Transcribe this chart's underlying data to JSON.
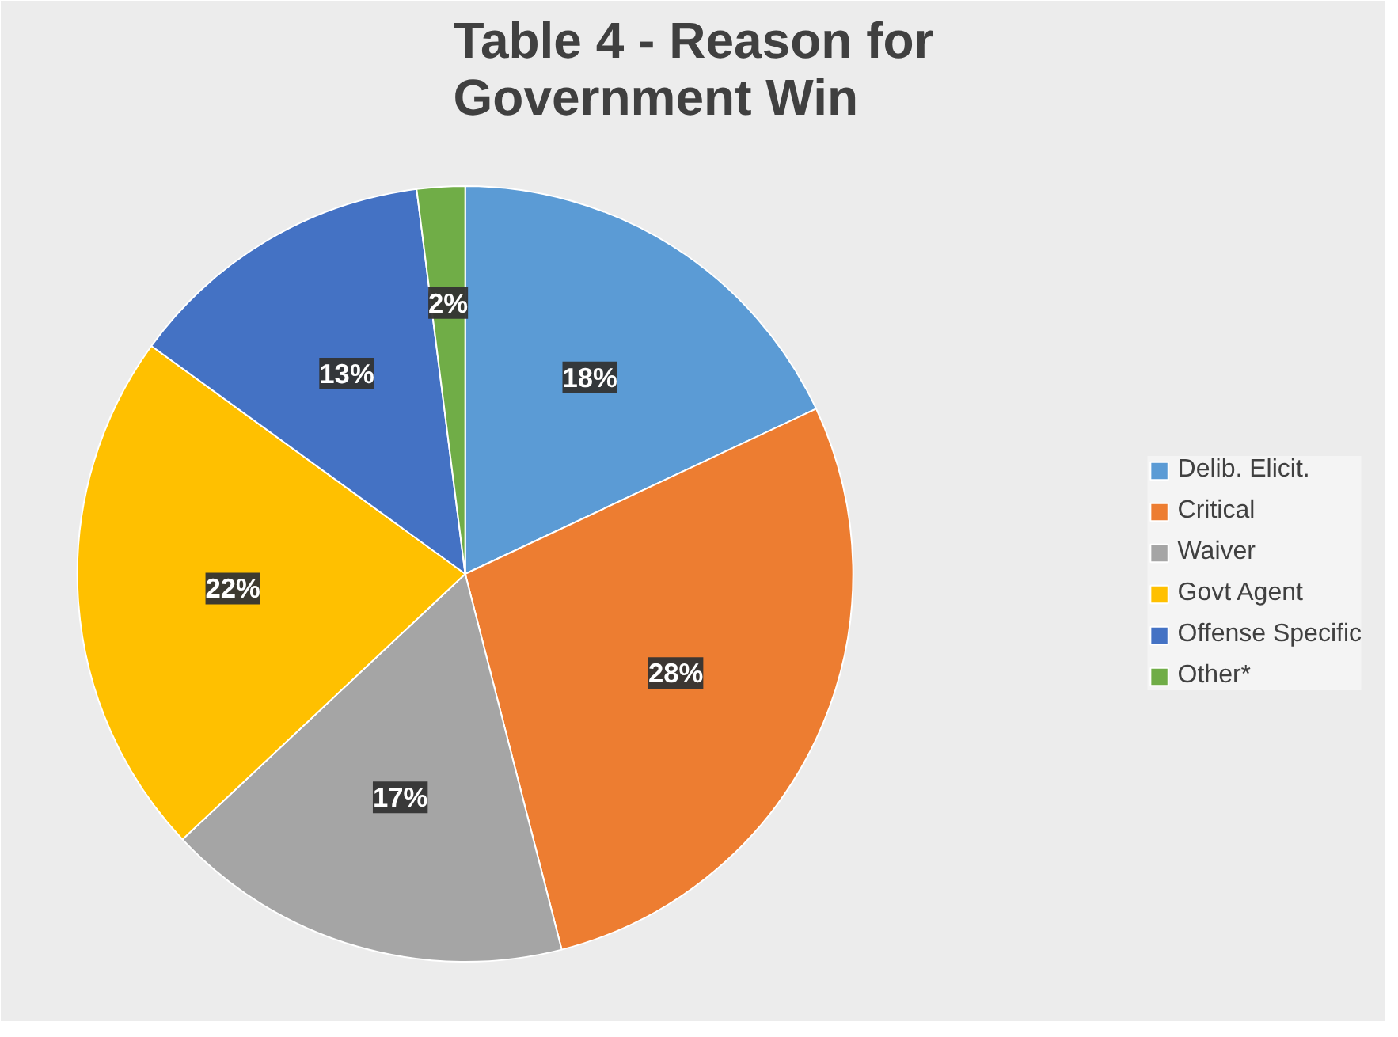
{
  "chart_data": {
    "type": "pie",
    "title": "Table 4 - Reason for Government Win",
    "categories": [
      "Delib. Elicit.",
      "Critical",
      "Waiver",
      "Govt Agent",
      "Offense Specific",
      "Other*"
    ],
    "values": [
      18,
      28,
      17,
      22,
      13,
      2
    ],
    "colors": [
      "#5b9bd5",
      "#ed7d31",
      "#a5a5a5",
      "#ffc000",
      "#4472c4",
      "#70ad47"
    ],
    "data_labels": true,
    "value_labels": [
      "18%",
      "28%",
      "17%",
      "22%",
      "13%",
      "2%"
    ],
    "legend": "right"
  }
}
